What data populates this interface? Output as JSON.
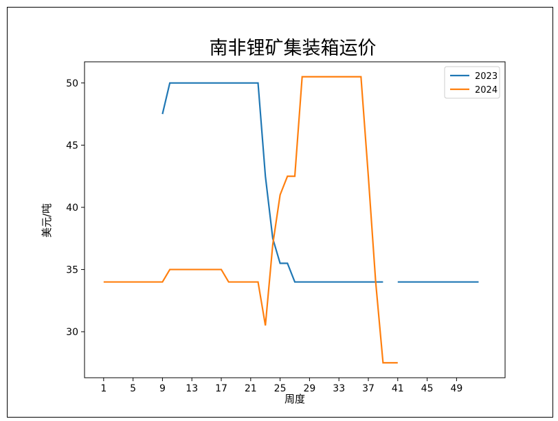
{
  "chart_data": {
    "type": "line",
    "title": "南非锂矿集装箱运价",
    "xlabel": "周度",
    "ylabel": "美元/吨",
    "xlim": [
      -1.6,
      55.6
    ],
    "ylim": [
      26.3,
      51.7
    ],
    "xticks": [
      1,
      5,
      9,
      13,
      17,
      21,
      25,
      29,
      33,
      37,
      41,
      45,
      49
    ],
    "yticks": [
      30,
      35,
      40,
      45,
      50
    ],
    "legend_position": "top-right",
    "grid": false,
    "series": [
      {
        "name": "2023",
        "color": "#1f77b4",
        "x": [
          9,
          10,
          11,
          12,
          13,
          14,
          15,
          16,
          17,
          18,
          19,
          20,
          21,
          22,
          23,
          24,
          25,
          26,
          27,
          28,
          29,
          30,
          31,
          32,
          33,
          34,
          35,
          36,
          37,
          38,
          39,
          40,
          41,
          42,
          43,
          44,
          45,
          46,
          47,
          48,
          49,
          50,
          51,
          52
        ],
        "y": [
          47.5,
          50,
          50,
          50,
          50,
          50,
          50,
          50,
          50,
          50,
          50,
          50,
          50,
          50,
          42.5,
          37.5,
          35.5,
          35.5,
          34,
          34,
          34,
          34,
          34,
          34,
          34,
          34,
          34,
          34,
          34,
          34,
          34,
          null,
          34,
          34,
          34,
          34,
          34,
          34,
          34,
          34,
          34,
          34,
          34,
          34
        ]
      },
      {
        "name": "2024",
        "color": "#ff7f0e",
        "x": [
          1,
          2,
          3,
          4,
          5,
          6,
          7,
          8,
          9,
          10,
          11,
          12,
          13,
          14,
          15,
          16,
          17,
          18,
          19,
          20,
          21,
          22,
          23,
          24,
          25,
          26,
          27,
          28,
          29,
          30,
          31,
          32,
          33,
          34,
          35,
          36,
          37,
          38,
          39,
          40,
          41
        ],
        "y": [
          34,
          34,
          34,
          34,
          34,
          34,
          34,
          34,
          34,
          35,
          35,
          35,
          35,
          35,
          35,
          35,
          35,
          34,
          34,
          34,
          34,
          34,
          30.5,
          37,
          41,
          42.5,
          42.5,
          50.5,
          50.5,
          50.5,
          50.5,
          50.5,
          50.5,
          50.5,
          50.5,
          50.5,
          42.5,
          34,
          27.5,
          27.5,
          27.5
        ]
      }
    ]
  }
}
